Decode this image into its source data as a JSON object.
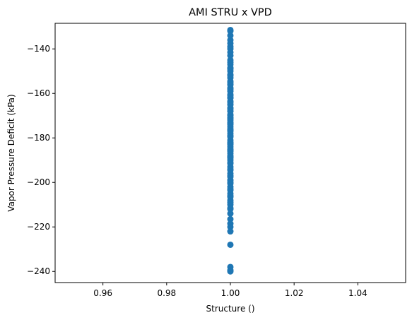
{
  "chart_data": {
    "type": "scatter",
    "title": "AMI STRU x VPD",
    "xlabel": "Structure ()",
    "ylabel": "Vapor Pressure Deficit (kPa)",
    "xlim": [
      0.945,
      1.055
    ],
    "ylim": [
      -245,
      -128.5
    ],
    "xticks": [
      0.96,
      0.98,
      1.0,
      1.02,
      1.04
    ],
    "xtick_labels": [
      "0.96",
      "0.98",
      "1.00",
      "1.02",
      "1.04"
    ],
    "yticks": [
      -140,
      -160,
      -180,
      -200,
      -220,
      -240
    ],
    "ytick_labels": [
      "−140",
      "−160",
      "−180",
      "−200",
      "−220",
      "−240"
    ],
    "grid": false,
    "legend": "none",
    "marker_color": "#1f77b4",
    "series": [
      {
        "x": [
          1,
          1,
          1,
          1,
          1,
          1,
          1,
          1,
          1,
          1,
          1,
          1,
          1,
          1,
          1,
          1,
          1,
          1,
          1,
          1,
          1,
          1,
          1,
          1,
          1,
          1,
          1,
          1,
          1,
          1,
          1,
          1,
          1,
          1,
          1,
          1,
          1,
          1,
          1,
          1,
          1,
          1,
          1,
          1,
          1,
          1,
          1,
          1,
          1,
          1,
          1,
          1,
          1,
          1,
          1,
          1,
          1,
          1,
          1,
          1,
          1,
          1,
          1,
          1,
          1,
          1,
          1,
          1,
          1,
          1,
          1,
          1,
          1,
          1,
          1,
          1,
          1,
          1,
          1,
          1,
          1,
          1,
          1,
          1,
          1,
          1,
          1,
          1,
          1,
          1,
          1,
          1,
          1,
          1,
          1,
          1
        ],
        "y": [
          -131.5,
          -134,
          -137.5,
          -140,
          -141.5,
          -143,
          -145,
          -147,
          -148.5,
          -150,
          -151.5,
          -153,
          -154.5,
          -156,
          -157.5,
          -159,
          -160.5,
          -162,
          -163.5,
          -165,
          -166.5,
          -168,
          -169.5,
          -171,
          -172,
          -173.5,
          -175,
          -176.5,
          -178,
          -179.5,
          -181,
          -182.5,
          -184,
          -185.5,
          -187,
          -188.5,
          -190,
          -191.5,
          -193,
          -194.5,
          -196,
          -197.5,
          -199,
          -200.5,
          -202,
          -203.5,
          -205,
          -206.5,
          -208,
          -210,
          -211.5,
          -214,
          -216.5,
          -218.5,
          -220,
          -222,
          -228,
          -238,
          -239.5,
          -240,
          -132,
          -136,
          -139,
          -146,
          -149,
          -152,
          -155,
          -158,
          -161,
          -164,
          -167,
          -170,
          -173,
          -176,
          -179,
          -182,
          -185,
          -188,
          -191,
          -194,
          -197,
          -200,
          -203,
          -206,
          -209,
          -212,
          -189,
          -186,
          -183,
          -177,
          -174,
          -171,
          -168,
          -165,
          -162,
          -156
        ]
      }
    ]
  }
}
